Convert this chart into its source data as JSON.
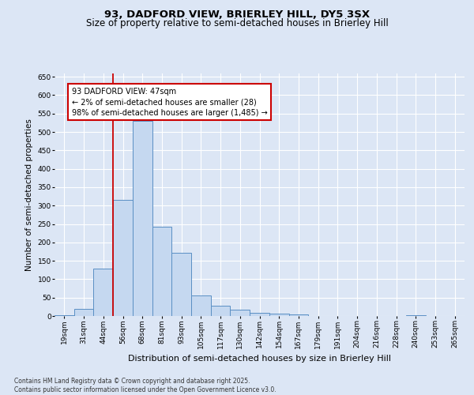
{
  "title1": "93, DADFORD VIEW, BRIERLEY HILL, DY5 3SX",
  "title2": "Size of property relative to semi-detached houses in Brierley Hill",
  "xlabel": "Distribution of semi-detached houses by size in Brierley Hill",
  "ylabel": "Number of semi-detached properties",
  "footnote": "Contains HM Land Registry data © Crown copyright and database right 2025.\nContains public sector information licensed under the Open Government Licence v3.0.",
  "bin_labels": [
    "19sqm",
    "31sqm",
    "44sqm",
    "56sqm",
    "68sqm",
    "81sqm",
    "93sqm",
    "105sqm",
    "117sqm",
    "130sqm",
    "142sqm",
    "154sqm",
    "167sqm",
    "179sqm",
    "191sqm",
    "204sqm",
    "216sqm",
    "228sqm",
    "240sqm",
    "253sqm",
    "265sqm"
  ],
  "bar_values": [
    3,
    20,
    128,
    315,
    530,
    243,
    172,
    55,
    27,
    17,
    8,
    7,
    5,
    1,
    1,
    1,
    0,
    0,
    2,
    0,
    1
  ],
  "bar_color": "#c5d8f0",
  "bar_edge_color": "#5a8fc4",
  "property_line_color": "#cc0000",
  "property_line_bin_index": 2.5,
  "annotation_title": "93 DADFORD VIEW: 47sqm",
  "annotation_line1": "← 2% of semi-detached houses are smaller (28)",
  "annotation_line2": "98% of semi-detached houses are larger (1,485) →",
  "annotation_box_color": "#cc0000",
  "ylim": [
    0,
    660
  ],
  "yticks": [
    0,
    50,
    100,
    150,
    200,
    250,
    300,
    350,
    400,
    450,
    500,
    550,
    600,
    650
  ],
  "background_color": "#dce6f5",
  "grid_color": "#ffffff",
  "title_fontsize": 9.5,
  "subtitle_fontsize": 8.5,
  "ylabel_fontsize": 7.5,
  "xlabel_fontsize": 8,
  "tick_fontsize": 6.5,
  "annot_fontsize": 7,
  "footnote_fontsize": 5.5
}
